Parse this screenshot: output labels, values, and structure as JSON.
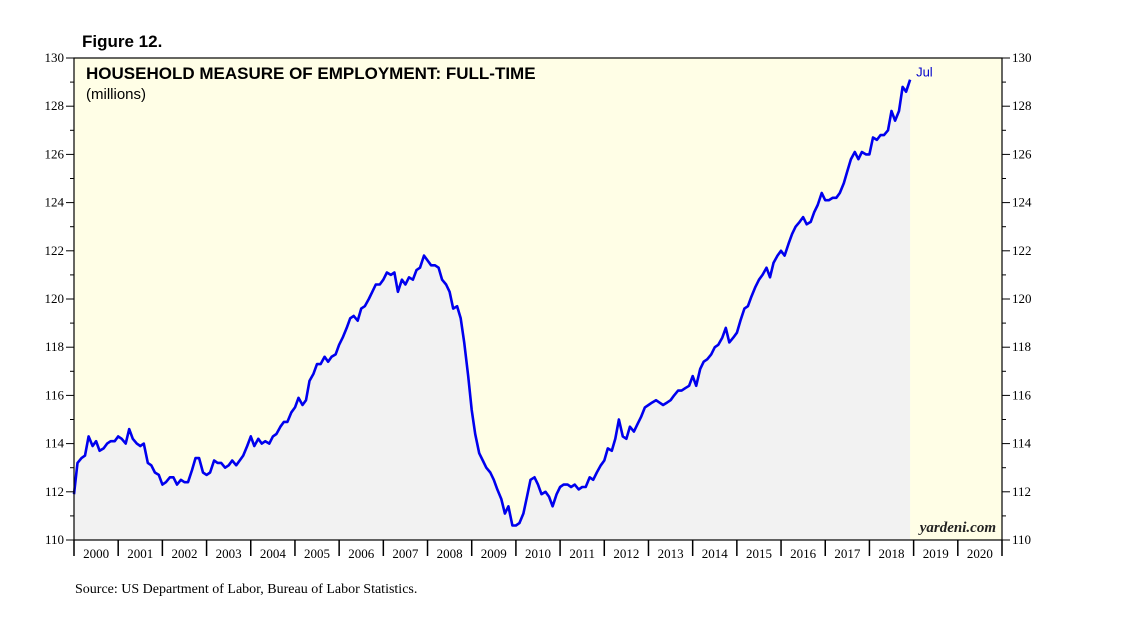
{
  "figure_label": "Figure 12.",
  "source": "Source: US Department of Labor, Bureau of Labor Statistics.",
  "watermark": "yardeni.com",
  "colors": {
    "background_pre": "#fffee6",
    "area_fill": "#f2f2f2",
    "line": "#0000ee",
    "end_label": "#0000cc"
  },
  "chart_data": {
    "type": "line",
    "title": "HOUSEHOLD MEASURE OF EMPLOYMENT: FULL-TIME",
    "subtitle": "(millions)",
    "xlabel": "",
    "ylabel": "",
    "xlim": [
      2000,
      2021
    ],
    "ylim": [
      110,
      130
    ],
    "y_ticks": [
      110,
      112,
      114,
      116,
      118,
      120,
      122,
      124,
      126,
      128,
      130
    ],
    "x_tick_labels": [
      "2000",
      "2001",
      "2002",
      "2003",
      "2004",
      "2005",
      "2006",
      "2007",
      "2008",
      "2009",
      "2010",
      "2011",
      "2012",
      "2013",
      "2014",
      "2015",
      "2016",
      "2017",
      "2018",
      "2019",
      "2020"
    ],
    "grid": false,
    "end_label": "Jul",
    "series": [
      {
        "values": [
          [
            2000.0,
            111.9
          ],
          [
            2000.08,
            113.2
          ],
          [
            2000.17,
            113.4
          ],
          [
            2000.25,
            113.5
          ],
          [
            2000.33,
            114.3
          ],
          [
            2000.42,
            113.9
          ],
          [
            2000.5,
            114.1
          ],
          [
            2000.58,
            113.7
          ],
          [
            2000.67,
            113.8
          ],
          [
            2000.75,
            114.0
          ],
          [
            2000.83,
            114.1
          ],
          [
            2000.92,
            114.1
          ],
          [
            2001.0,
            114.3
          ],
          [
            2001.08,
            114.2
          ],
          [
            2001.17,
            114.0
          ],
          [
            2001.25,
            114.6
          ],
          [
            2001.33,
            114.2
          ],
          [
            2001.42,
            114.0
          ],
          [
            2001.5,
            113.9
          ],
          [
            2001.58,
            114.0
          ],
          [
            2001.67,
            113.2
          ],
          [
            2001.75,
            113.1
          ],
          [
            2001.83,
            112.8
          ],
          [
            2001.92,
            112.7
          ],
          [
            2002.0,
            112.3
          ],
          [
            2002.08,
            112.4
          ],
          [
            2002.17,
            112.6
          ],
          [
            2002.25,
            112.6
          ],
          [
            2002.33,
            112.3
          ],
          [
            2002.42,
            112.5
          ],
          [
            2002.5,
            112.4
          ],
          [
            2002.58,
            112.4
          ],
          [
            2002.67,
            112.9
          ],
          [
            2002.75,
            113.4
          ],
          [
            2002.83,
            113.4
          ],
          [
            2002.92,
            112.8
          ],
          [
            2003.0,
            112.7
          ],
          [
            2003.08,
            112.8
          ],
          [
            2003.17,
            113.3
          ],
          [
            2003.25,
            113.2
          ],
          [
            2003.33,
            113.2
          ],
          [
            2003.42,
            113.0
          ],
          [
            2003.5,
            113.1
          ],
          [
            2003.58,
            113.3
          ],
          [
            2003.67,
            113.1
          ],
          [
            2003.75,
            113.3
          ],
          [
            2003.83,
            113.5
          ],
          [
            2003.92,
            113.9
          ],
          [
            2004.0,
            114.3
          ],
          [
            2004.08,
            113.9
          ],
          [
            2004.17,
            114.2
          ],
          [
            2004.25,
            114.0
          ],
          [
            2004.33,
            114.1
          ],
          [
            2004.42,
            114.0
          ],
          [
            2004.5,
            114.3
          ],
          [
            2004.58,
            114.4
          ],
          [
            2004.67,
            114.7
          ],
          [
            2004.75,
            114.9
          ],
          [
            2004.83,
            114.9
          ],
          [
            2004.92,
            115.3
          ],
          [
            2005.0,
            115.5
          ],
          [
            2005.08,
            115.9
          ],
          [
            2005.17,
            115.6
          ],
          [
            2005.25,
            115.8
          ],
          [
            2005.33,
            116.6
          ],
          [
            2005.42,
            116.9
          ],
          [
            2005.5,
            117.3
          ],
          [
            2005.58,
            117.3
          ],
          [
            2005.67,
            117.6
          ],
          [
            2005.75,
            117.4
          ],
          [
            2005.83,
            117.6
          ],
          [
            2005.92,
            117.7
          ],
          [
            2006.0,
            118.1
          ],
          [
            2006.08,
            118.4
          ],
          [
            2006.17,
            118.8
          ],
          [
            2006.25,
            119.2
          ],
          [
            2006.33,
            119.3
          ],
          [
            2006.42,
            119.1
          ],
          [
            2006.5,
            119.6
          ],
          [
            2006.58,
            119.7
          ],
          [
            2006.67,
            120.0
          ],
          [
            2006.75,
            120.3
          ],
          [
            2006.83,
            120.6
          ],
          [
            2006.92,
            120.6
          ],
          [
            2007.0,
            120.8
          ],
          [
            2007.08,
            121.1
          ],
          [
            2007.17,
            121.0
          ],
          [
            2007.25,
            121.1
          ],
          [
            2007.33,
            120.3
          ],
          [
            2007.42,
            120.8
          ],
          [
            2007.5,
            120.6
          ],
          [
            2007.58,
            120.9
          ],
          [
            2007.67,
            120.8
          ],
          [
            2007.75,
            121.2
          ],
          [
            2007.83,
            121.3
          ],
          [
            2007.92,
            121.8
          ],
          [
            2008.0,
            121.6
          ],
          [
            2008.08,
            121.4
          ],
          [
            2008.17,
            121.4
          ],
          [
            2008.25,
            121.3
          ],
          [
            2008.33,
            120.8
          ],
          [
            2008.42,
            120.6
          ],
          [
            2008.5,
            120.3
          ],
          [
            2008.58,
            119.6
          ],
          [
            2008.67,
            119.7
          ],
          [
            2008.75,
            119.2
          ],
          [
            2008.83,
            118.2
          ],
          [
            2008.92,
            116.8
          ],
          [
            2009.0,
            115.4
          ],
          [
            2009.08,
            114.4
          ],
          [
            2009.17,
            113.6
          ],
          [
            2009.25,
            113.3
          ],
          [
            2009.33,
            113.0
          ],
          [
            2009.42,
            112.8
          ],
          [
            2009.5,
            112.5
          ],
          [
            2009.58,
            112.1
          ],
          [
            2009.67,
            111.7
          ],
          [
            2009.75,
            111.1
          ],
          [
            2009.83,
            111.4
          ],
          [
            2009.92,
            110.6
          ],
          [
            2010.0,
            110.6
          ],
          [
            2010.08,
            110.7
          ],
          [
            2010.17,
            111.1
          ],
          [
            2010.25,
            111.8
          ],
          [
            2010.33,
            112.5
          ],
          [
            2010.42,
            112.6
          ],
          [
            2010.5,
            112.3
          ],
          [
            2010.58,
            111.9
          ],
          [
            2010.67,
            112.0
          ],
          [
            2010.75,
            111.8
          ],
          [
            2010.83,
            111.4
          ],
          [
            2010.92,
            111.9
          ],
          [
            2011.0,
            112.2
          ],
          [
            2011.08,
            112.3
          ],
          [
            2011.17,
            112.3
          ],
          [
            2011.25,
            112.2
          ],
          [
            2011.33,
            112.3
          ],
          [
            2011.42,
            112.1
          ],
          [
            2011.5,
            112.2
          ],
          [
            2011.58,
            112.2
          ],
          [
            2011.67,
            112.6
          ],
          [
            2011.75,
            112.5
          ],
          [
            2011.83,
            112.8
          ],
          [
            2011.92,
            113.1
          ],
          [
            2012.0,
            113.3
          ],
          [
            2012.08,
            113.8
          ],
          [
            2012.17,
            113.7
          ],
          [
            2012.25,
            114.2
          ],
          [
            2012.33,
            115.0
          ],
          [
            2012.42,
            114.3
          ],
          [
            2012.5,
            114.2
          ],
          [
            2012.58,
            114.7
          ],
          [
            2012.67,
            114.5
          ],
          [
            2012.75,
            114.8
          ],
          [
            2012.83,
            115.1
          ],
          [
            2012.92,
            115.5
          ],
          [
            2013.0,
            115.6
          ],
          [
            2013.08,
            115.7
          ],
          [
            2013.17,
            115.8
          ],
          [
            2013.25,
            115.7
          ],
          [
            2013.33,
            115.6
          ],
          [
            2013.42,
            115.7
          ],
          [
            2013.5,
            115.8
          ],
          [
            2013.58,
            116.0
          ],
          [
            2013.67,
            116.2
          ],
          [
            2013.75,
            116.2
          ],
          [
            2013.83,
            116.3
          ],
          [
            2013.92,
            116.4
          ],
          [
            2014.0,
            116.8
          ],
          [
            2014.08,
            116.4
          ],
          [
            2014.17,
            117.1
          ],
          [
            2014.25,
            117.4
          ],
          [
            2014.33,
            117.5
          ],
          [
            2014.42,
            117.7
          ],
          [
            2014.5,
            118.0
          ],
          [
            2014.58,
            118.1
          ],
          [
            2014.67,
            118.4
          ],
          [
            2014.75,
            118.8
          ],
          [
            2014.83,
            118.2
          ],
          [
            2014.92,
            118.4
          ],
          [
            2015.0,
            118.6
          ],
          [
            2015.08,
            119.1
          ],
          [
            2015.17,
            119.6
          ],
          [
            2015.25,
            119.7
          ],
          [
            2015.33,
            120.1
          ],
          [
            2015.42,
            120.5
          ],
          [
            2015.5,
            120.8
          ],
          [
            2015.58,
            121.0
          ],
          [
            2015.67,
            121.3
          ],
          [
            2015.75,
            120.9
          ],
          [
            2015.83,
            121.5
          ],
          [
            2015.92,
            121.8
          ],
          [
            2016.0,
            122.0
          ],
          [
            2016.08,
            121.8
          ],
          [
            2016.17,
            122.3
          ],
          [
            2016.25,
            122.7
          ],
          [
            2016.33,
            123.0
          ],
          [
            2016.42,
            123.2
          ],
          [
            2016.5,
            123.4
          ],
          [
            2016.58,
            123.1
          ],
          [
            2016.67,
            123.2
          ],
          [
            2016.75,
            123.6
          ],
          [
            2016.83,
            123.9
          ],
          [
            2016.92,
            124.4
          ],
          [
            2017.0,
            124.1
          ],
          [
            2017.08,
            124.1
          ],
          [
            2017.17,
            124.2
          ],
          [
            2017.25,
            124.2
          ],
          [
            2017.33,
            124.4
          ],
          [
            2017.42,
            124.8
          ],
          [
            2017.5,
            125.3
          ],
          [
            2017.58,
            125.8
          ],
          [
            2017.67,
            126.1
          ],
          [
            2017.75,
            125.8
          ],
          [
            2017.83,
            126.1
          ],
          [
            2017.92,
            126.0
          ],
          [
            2018.0,
            126.0
          ],
          [
            2018.08,
            126.7
          ],
          [
            2018.17,
            126.6
          ],
          [
            2018.25,
            126.8
          ],
          [
            2018.33,
            126.8
          ],
          [
            2018.42,
            127.0
          ],
          [
            2018.5,
            127.8
          ],
          [
            2018.58,
            127.4
          ],
          [
            2018.67,
            127.8
          ],
          [
            2018.75,
            128.8
          ],
          [
            2018.83,
            128.6
          ],
          [
            2018.92,
            129.1
          ]
        ]
      }
    ]
  }
}
